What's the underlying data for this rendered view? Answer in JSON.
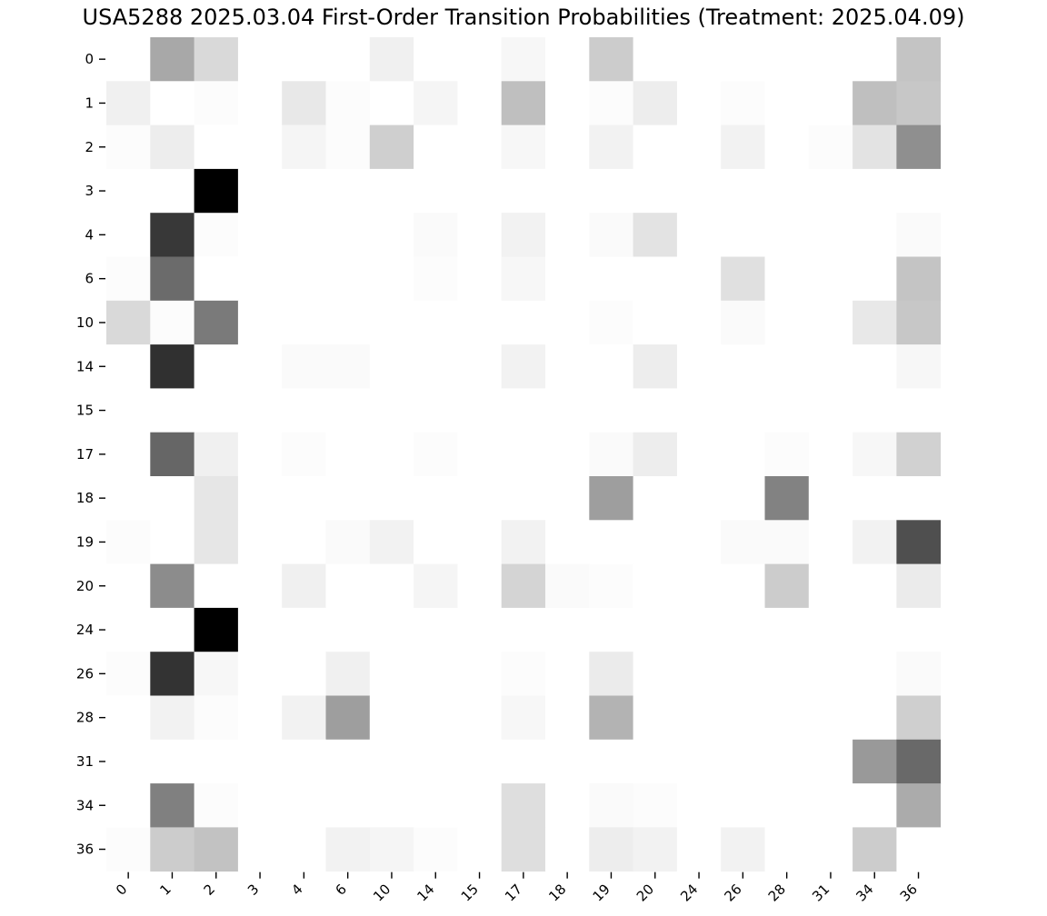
{
  "chart_data": {
    "type": "heatmap",
    "title": "USA5288 2025.03.04 First-Order Transition Probabilities (Treatment: 2025.04.09)",
    "xlabel": "",
    "ylabel": "",
    "colormap": "Greys",
    "vmin": 0,
    "vmax": 1,
    "colorbar": false,
    "rows": [
      "0",
      "1",
      "2",
      "3",
      "4",
      "6",
      "10",
      "14",
      "15",
      "17",
      "18",
      "19",
      "20",
      "24",
      "26",
      "28",
      "31",
      "34",
      "36"
    ],
    "cols": [
      "0",
      "1",
      "2",
      "3",
      "4",
      "6",
      "10",
      "14",
      "15",
      "17",
      "18",
      "19",
      "20",
      "24",
      "26",
      "28",
      "31",
      "34",
      "36"
    ],
    "values": [
      [
        0.0,
        0.34,
        0.15,
        0.0,
        0.0,
        0.0,
        0.06,
        0.0,
        0.0,
        0.03,
        0.0,
        0.2,
        0.0,
        0.0,
        0.0,
        0.0,
        0.0,
        0.0,
        0.23
      ],
      [
        0.06,
        0.0,
        0.01,
        0.0,
        0.09,
        0.01,
        0.0,
        0.04,
        0.0,
        0.25,
        0.0,
        0.01,
        0.07,
        0.0,
        0.01,
        0.0,
        0.0,
        0.25,
        0.22
      ],
      [
        0.01,
        0.07,
        0.0,
        0.0,
        0.04,
        0.01,
        0.19,
        0.0,
        0.0,
        0.03,
        0.0,
        0.05,
        0.0,
        0.0,
        0.05,
        0.0,
        0.01,
        0.11,
        0.44
      ],
      [
        0.0,
        0.0,
        1.0,
        0.0,
        0.0,
        0.0,
        0.0,
        0.0,
        0.0,
        0.0,
        0.0,
        0.0,
        0.0,
        0.0,
        0.0,
        0.0,
        0.0,
        0.0,
        0.0
      ],
      [
        0.0,
        0.78,
        0.01,
        0.0,
        0.0,
        0.0,
        0.0,
        0.02,
        0.0,
        0.05,
        0.0,
        0.02,
        0.11,
        0.0,
        0.0,
        0.0,
        0.0,
        0.0,
        0.02
      ],
      [
        0.01,
        0.58,
        0.0,
        0.0,
        0.0,
        0.0,
        0.0,
        0.01,
        0.0,
        0.03,
        0.0,
        0.0,
        0.0,
        0.0,
        0.12,
        0.0,
        0.0,
        0.0,
        0.23
      ],
      [
        0.15,
        0.01,
        0.52,
        0.0,
        0.0,
        0.0,
        0.0,
        0.0,
        0.0,
        0.0,
        0.0,
        0.01,
        0.0,
        0.0,
        0.02,
        0.0,
        0.0,
        0.09,
        0.22
      ],
      [
        0.0,
        0.81,
        0.0,
        0.0,
        0.02,
        0.02,
        0.0,
        0.0,
        0.0,
        0.05,
        0.0,
        0.0,
        0.07,
        0.0,
        0.0,
        0.0,
        0.0,
        0.0,
        0.03
      ],
      [
        0.0,
        0.0,
        0.0,
        0.0,
        0.0,
        0.0,
        0.0,
        0.0,
        0.0,
        0.0,
        0.0,
        0.0,
        0.0,
        0.0,
        0.0,
        0.0,
        0.0,
        0.0,
        0.0
      ],
      [
        0.0,
        0.6,
        0.06,
        0.0,
        0.01,
        0.0,
        0.0,
        0.01,
        0.0,
        0.0,
        0.0,
        0.02,
        0.07,
        0.0,
        0.0,
        0.01,
        0.0,
        0.03,
        0.18
      ],
      [
        0.0,
        0.0,
        0.1,
        0.0,
        0.0,
        0.0,
        0.0,
        0.0,
        0.0,
        0.0,
        0.0,
        0.38,
        0.0,
        0.0,
        0.0,
        0.49,
        0.0,
        0.0,
        0.0
      ],
      [
        0.01,
        0.0,
        0.1,
        0.0,
        0.0,
        0.02,
        0.05,
        0.0,
        0.0,
        0.05,
        0.0,
        0.0,
        0.0,
        0.0,
        0.02,
        0.02,
        0.0,
        0.05,
        0.69
      ],
      [
        0.0,
        0.45,
        0.0,
        0.0,
        0.06,
        0.0,
        0.0,
        0.04,
        0.0,
        0.17,
        0.02,
        0.01,
        0.0,
        0.0,
        0.0,
        0.2,
        0.0,
        0.0,
        0.08
      ],
      [
        0.0,
        0.0,
        1.0,
        0.0,
        0.0,
        0.0,
        0.0,
        0.0,
        0.0,
        0.0,
        0.0,
        0.0,
        0.0,
        0.0,
        0.0,
        0.0,
        0.0,
        0.0,
        0.0
      ],
      [
        0.01,
        0.8,
        0.03,
        0.0,
        0.0,
        0.06,
        0.0,
        0.0,
        0.0,
        0.01,
        0.0,
        0.08,
        0.0,
        0.0,
        0.0,
        0.0,
        0.0,
        0.0,
        0.02
      ],
      [
        0.0,
        0.05,
        0.01,
        0.0,
        0.05,
        0.38,
        0.0,
        0.0,
        0.0,
        0.03,
        0.0,
        0.3,
        0.0,
        0.0,
        0.0,
        0.0,
        0.0,
        0.0,
        0.19
      ],
      [
        0.0,
        0.0,
        0.0,
        0.0,
        0.0,
        0.0,
        0.0,
        0.0,
        0.0,
        0.0,
        0.0,
        0.0,
        0.0,
        0.0,
        0.0,
        0.0,
        0.0,
        0.4,
        0.59
      ],
      [
        0.0,
        0.5,
        0.01,
        0.0,
        0.0,
        0.0,
        0.0,
        0.0,
        0.0,
        0.13,
        0.0,
        0.02,
        0.01,
        0.0,
        0.0,
        0.0,
        0.0,
        0.0,
        0.33
      ],
      [
        0.01,
        0.2,
        0.24,
        0.0,
        0.0,
        0.05,
        0.04,
        0.01,
        0.0,
        0.13,
        0.0,
        0.07,
        0.05,
        0.0,
        0.05,
        0.0,
        0.0,
        0.2,
        0.0
      ]
    ]
  }
}
